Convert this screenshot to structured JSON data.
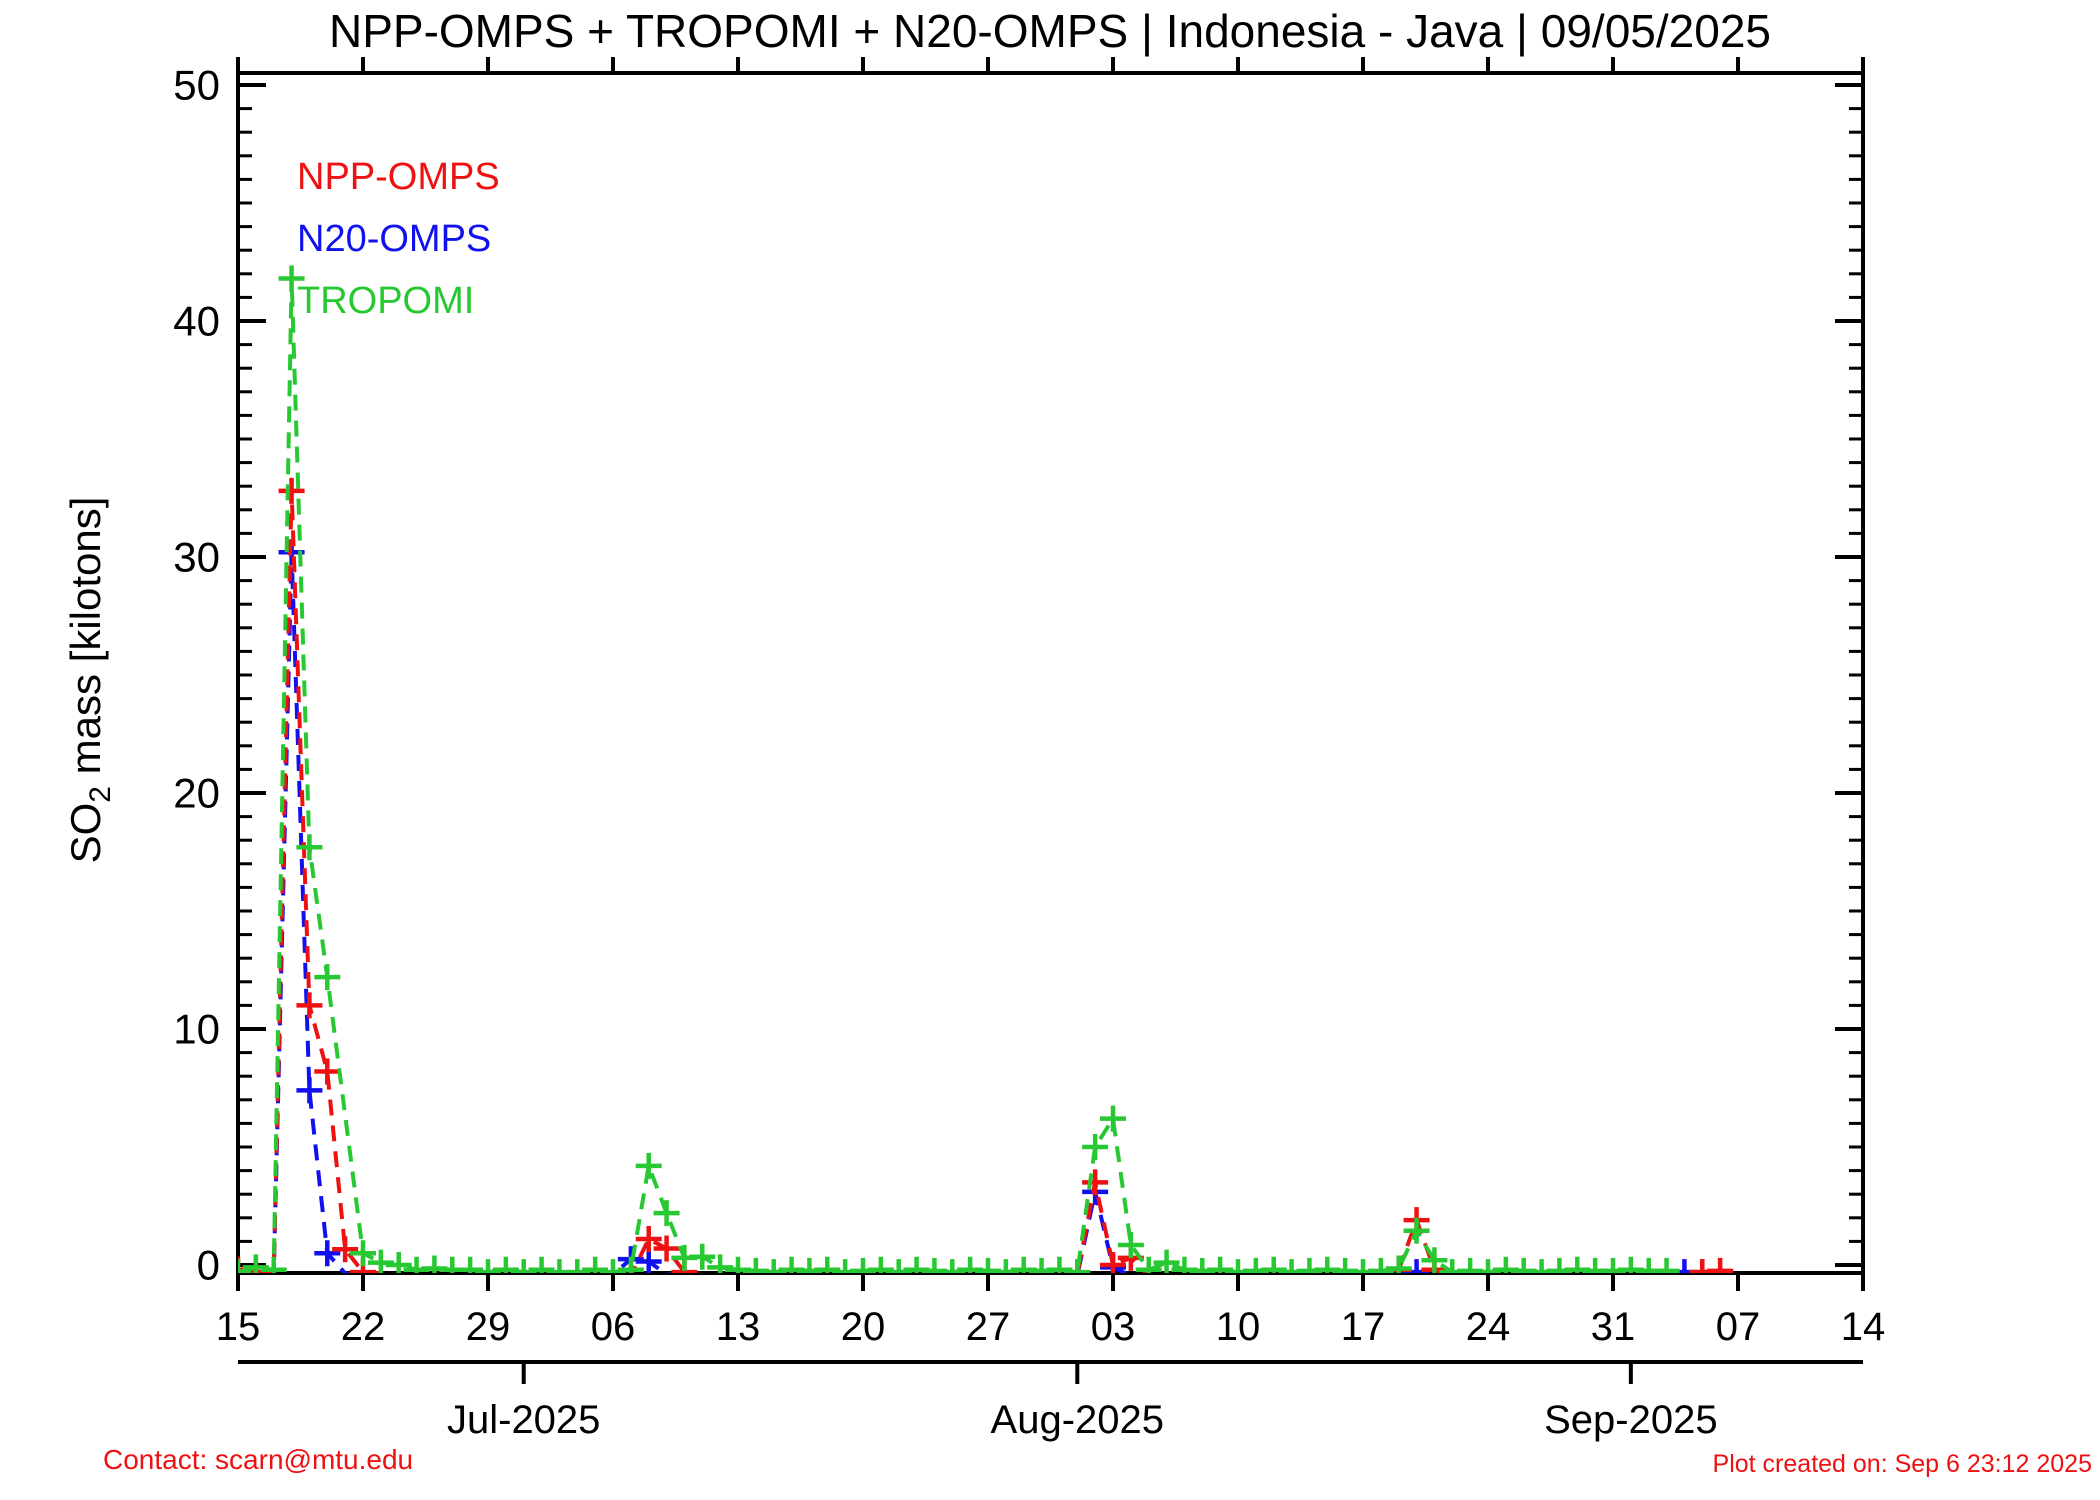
{
  "title": "NPP-OMPS + TROPOMI + N20-OMPS | Indonesia - Java | 09/05/2025",
  "legend": {
    "items": [
      {
        "label": "NPP-OMPS",
        "color": "#ee1111"
      },
      {
        "label": "N20-OMPS",
        "color": "#1111ee"
      },
      {
        "label": "TROPOMI",
        "color": "#28c832"
      }
    ]
  },
  "footer": {
    "contact": "Contact: scarn@mtu.edu",
    "created": "Plot created on: Sep  6 23:12 2025",
    "color": "#ee1111"
  },
  "chart_data": {
    "type": "line",
    "title": "NPP-OMPS + TROPOMI + N20-OMPS | Indonesia - Java | 09/05/2025",
    "ylabel": "SO2 mass [kilotons]",
    "ylabel_parts": {
      "base": "SO",
      "sub": "2",
      "rest": " mass [kilotons]"
    },
    "ylim": [
      -0.55,
      50.6
    ],
    "yticks": [
      0,
      10,
      20,
      30,
      40,
      50
    ],
    "y_minor_step": 1,
    "grid": false,
    "legend_position": "top-left-inside",
    "x_unit": "days since 2025-06-15",
    "x_days_total": 91,
    "x_week_ticks": {
      "days": [
        0,
        7,
        14,
        21,
        28,
        35,
        42,
        49,
        56,
        63,
        70,
        77,
        84,
        91
      ],
      "labels": [
        "15",
        "22",
        "29",
        "06",
        "13",
        "20",
        "27",
        "03",
        "10",
        "17",
        "24",
        "31",
        "07",
        "14"
      ]
    },
    "months": {
      "axis_ticks_days": [
        16,
        47,
        78
      ],
      "labels": [
        "Jul-2025",
        "Aug-2025",
        "Sep-2025"
      ]
    },
    "series": [
      {
        "name": "N20-OMPS",
        "color": "#1111ee",
        "marker": "plus",
        "linestyle": "dashed",
        "marker_min_value": -0.35,
        "points": [
          [
            0,
            -0.45
          ],
          [
            1,
            -0.45
          ],
          [
            2,
            -0.45
          ],
          [
            3,
            30.2
          ],
          [
            4,
            7.4
          ],
          [
            5,
            0.5
          ],
          [
            6,
            -0.35
          ],
          [
            7,
            -0.45
          ],
          [
            8,
            -0.45
          ],
          [
            9,
            -0.45
          ],
          [
            10,
            -0.45
          ],
          [
            11,
            -0.45
          ],
          [
            12,
            -0.45
          ],
          [
            13,
            -0.45
          ],
          [
            14,
            -0.45
          ],
          [
            15,
            -0.45
          ],
          [
            16,
            -0.45
          ],
          [
            17,
            -0.45
          ],
          [
            18,
            -0.45
          ],
          [
            19,
            -0.45
          ],
          [
            20,
            -0.45
          ],
          [
            21,
            -0.4
          ],
          [
            22,
            0.25
          ],
          [
            23,
            0.15
          ],
          [
            24,
            -0.4
          ],
          [
            25,
            -0.45
          ],
          [
            26,
            -0.45
          ],
          [
            27,
            -0.45
          ],
          [
            28,
            -0.45
          ],
          [
            29,
            -0.45
          ],
          [
            30,
            -0.45
          ],
          [
            31,
            -0.45
          ],
          [
            32,
            -0.45
          ],
          [
            33,
            -0.45
          ],
          [
            34,
            -0.45
          ],
          [
            35,
            -0.45
          ],
          [
            36,
            -0.45
          ],
          [
            37,
            -0.45
          ],
          [
            38,
            -0.45
          ],
          [
            39,
            -0.45
          ],
          [
            40,
            -0.45
          ],
          [
            41,
            -0.45
          ],
          [
            42,
            -0.45
          ],
          [
            43,
            -0.45
          ],
          [
            44,
            -0.45
          ],
          [
            45,
            -0.45
          ],
          [
            46,
            -0.45
          ],
          [
            47,
            -0.45
          ],
          [
            48,
            3.1
          ],
          [
            49,
            -0.1
          ],
          [
            50,
            -0.45
          ],
          [
            51,
            -0.45
          ],
          [
            52,
            -0.45
          ],
          [
            53,
            -0.45
          ],
          [
            54,
            -0.45
          ],
          [
            55,
            -0.45
          ],
          [
            56,
            -0.45
          ],
          [
            57,
            -0.45
          ],
          [
            58,
            -0.45
          ],
          [
            59,
            -0.45
          ],
          [
            60,
            -0.45
          ],
          [
            61,
            -0.45
          ],
          [
            62,
            -0.45
          ],
          [
            63,
            -0.45
          ],
          [
            64,
            -0.45
          ],
          [
            65,
            -0.35
          ],
          [
            66,
            -0.3
          ],
          [
            67,
            -0.45
          ],
          [
            68,
            -0.45
          ],
          [
            69,
            -0.45
          ],
          [
            70,
            -0.45
          ],
          [
            71,
            -0.45
          ],
          [
            72,
            -0.45
          ],
          [
            73,
            -0.45
          ],
          [
            74,
            -0.45
          ],
          [
            75,
            -0.45
          ],
          [
            76,
            -0.45
          ],
          [
            77,
            -0.45
          ],
          [
            78,
            -0.45
          ],
          [
            79,
            -0.45
          ],
          [
            80,
            -0.45
          ],
          [
            81,
            -0.3
          ],
          [
            82,
            -0.3
          ]
        ]
      },
      {
        "name": "NPP-OMPS",
        "color": "#ee1111",
        "marker": "plus",
        "linestyle": "dashed",
        "marker_min_value": -0.35,
        "points": [
          [
            0,
            -0.2
          ],
          [
            1,
            -0.3
          ],
          [
            2,
            -0.35
          ],
          [
            3,
            32.8
          ],
          [
            4,
            11.0
          ],
          [
            5,
            8.2
          ],
          [
            6,
            0.67
          ],
          [
            7,
            -0.3
          ],
          [
            8,
            -0.35
          ],
          [
            9,
            -0.45
          ],
          [
            10,
            -0.45
          ],
          [
            11,
            -0.45
          ],
          [
            12,
            -0.45
          ],
          [
            13,
            -0.45
          ],
          [
            14,
            -0.45
          ],
          [
            15,
            -0.45
          ],
          [
            16,
            -0.45
          ],
          [
            17,
            -0.45
          ],
          [
            18,
            -0.45
          ],
          [
            19,
            -0.45
          ],
          [
            20,
            -0.45
          ],
          [
            21,
            -0.45
          ],
          [
            22,
            -0.45
          ],
          [
            23,
            1.1
          ],
          [
            24,
            0.7
          ],
          [
            25,
            -0.3
          ],
          [
            26,
            -0.45
          ],
          [
            27,
            -0.45
          ],
          [
            28,
            -0.45
          ],
          [
            29,
            -0.45
          ],
          [
            30,
            -0.45
          ],
          [
            31,
            -0.45
          ],
          [
            32,
            -0.45
          ],
          [
            33,
            -0.45
          ],
          [
            34,
            -0.45
          ],
          [
            35,
            -0.45
          ],
          [
            36,
            -0.45
          ],
          [
            37,
            -0.45
          ],
          [
            38,
            -0.45
          ],
          [
            39,
            -0.45
          ],
          [
            40,
            -0.45
          ],
          [
            41,
            -0.45
          ],
          [
            42,
            -0.45
          ],
          [
            43,
            -0.45
          ],
          [
            44,
            -0.45
          ],
          [
            45,
            -0.45
          ],
          [
            46,
            -0.45
          ],
          [
            47,
            -0.4
          ],
          [
            48,
            3.5
          ],
          [
            49,
            0.0
          ],
          [
            50,
            0.3
          ],
          [
            51,
            -0.45
          ],
          [
            52,
            -0.45
          ],
          [
            53,
            -0.45
          ],
          [
            54,
            -0.45
          ],
          [
            55,
            -0.45
          ],
          [
            56,
            -0.45
          ],
          [
            57,
            -0.45
          ],
          [
            58,
            -0.45
          ],
          [
            59,
            -0.45
          ],
          [
            60,
            -0.45
          ],
          [
            61,
            -0.45
          ],
          [
            62,
            -0.45
          ],
          [
            63,
            -0.45
          ],
          [
            64,
            -0.45
          ],
          [
            65,
            -0.2
          ],
          [
            66,
            1.9
          ],
          [
            67,
            -0.2
          ],
          [
            68,
            -0.45
          ],
          [
            69,
            -0.45
          ],
          [
            70,
            -0.45
          ],
          [
            71,
            -0.45
          ],
          [
            72,
            -0.45
          ],
          [
            73,
            -0.45
          ],
          [
            74,
            -0.45
          ],
          [
            75,
            -0.45
          ],
          [
            76,
            -0.45
          ],
          [
            77,
            -0.45
          ],
          [
            78,
            -0.45
          ],
          [
            79,
            -0.45
          ],
          [
            80,
            -0.45
          ],
          [
            81,
            -0.45
          ],
          [
            82,
            -0.3
          ],
          [
            83,
            -0.25
          ]
        ]
      },
      {
        "name": "TROPOMI",
        "color": "#28c832",
        "marker": "plus",
        "linestyle": "dashed",
        "marker_min_value": -99,
        "points": [
          [
            0,
            -0.3
          ],
          [
            1,
            -0.1
          ],
          [
            2,
            -0.2
          ],
          [
            3,
            41.8
          ],
          [
            4,
            17.7
          ],
          [
            5,
            12.2
          ],
          [
            7,
            0.5
          ],
          [
            8,
            0.1
          ],
          [
            9,
            0.0
          ],
          [
            10,
            -0.2
          ],
          [
            11,
            -0.15
          ],
          [
            12,
            -0.2
          ],
          [
            13,
            -0.2
          ],
          [
            14,
            -0.3
          ],
          [
            15,
            -0.2
          ],
          [
            16,
            -0.3
          ],
          [
            17,
            -0.2
          ],
          [
            18,
            -0.3
          ],
          [
            19,
            -0.3
          ],
          [
            20,
            -0.2
          ],
          [
            21,
            -0.3
          ],
          [
            22,
            -0.2
          ],
          [
            23,
            4.2
          ],
          [
            24,
            2.2
          ],
          [
            25,
            0.3
          ],
          [
            26,
            0.35
          ],
          [
            27,
            -0.1
          ],
          [
            28,
            -0.2
          ],
          [
            29,
            -0.25
          ],
          [
            30,
            -0.3
          ],
          [
            31,
            -0.2
          ],
          [
            32,
            -0.25
          ],
          [
            33,
            -0.2
          ],
          [
            34,
            -0.3
          ],
          [
            35,
            -0.25
          ],
          [
            36,
            -0.2
          ],
          [
            37,
            -0.3
          ],
          [
            38,
            -0.2
          ],
          [
            39,
            -0.25
          ],
          [
            40,
            -0.3
          ],
          [
            41,
            -0.2
          ],
          [
            42,
            -0.25
          ],
          [
            43,
            -0.3
          ],
          [
            44,
            -0.2
          ],
          [
            45,
            -0.25
          ],
          [
            46,
            -0.2
          ],
          [
            47,
            -0.3
          ],
          [
            48,
            5.0
          ],
          [
            49,
            6.2
          ],
          [
            50,
            0.85
          ],
          [
            51,
            -0.2
          ],
          [
            52,
            0.1
          ],
          [
            53,
            -0.2
          ],
          [
            54,
            -0.25
          ],
          [
            55,
            -0.2
          ],
          [
            56,
            -0.3
          ],
          [
            57,
            -0.25
          ],
          [
            58,
            -0.2
          ],
          [
            59,
            -0.3
          ],
          [
            60,
            -0.25
          ],
          [
            61,
            -0.2
          ],
          [
            62,
            -0.25
          ],
          [
            63,
            -0.3
          ],
          [
            64,
            -0.25
          ],
          [
            65,
            -0.15
          ],
          [
            66,
            1.45
          ],
          [
            67,
            0.2
          ],
          [
            68,
            -0.3
          ],
          [
            69,
            -0.25
          ],
          [
            70,
            -0.3
          ],
          [
            71,
            -0.2
          ],
          [
            72,
            -0.25
          ],
          [
            73,
            -0.3
          ],
          [
            74,
            -0.25
          ],
          [
            75,
            -0.2
          ],
          [
            76,
            -0.25
          ],
          [
            77,
            -0.25
          ],
          [
            78,
            -0.2
          ],
          [
            79,
            -0.25
          ],
          [
            80,
            -0.25
          ]
        ]
      }
    ]
  }
}
